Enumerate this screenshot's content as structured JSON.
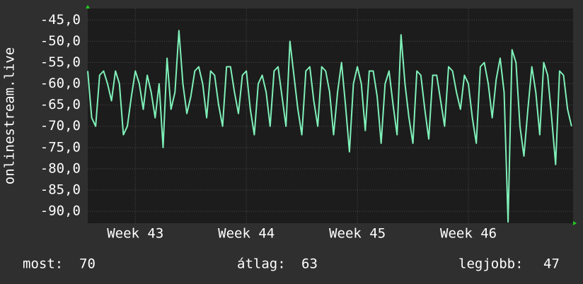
{
  "chart_data": {
    "type": "line",
    "y_label": "onlinestream.live",
    "x": [
      0,
      0.25,
      0.5,
      0.75,
      1,
      1.25,
      1.5,
      1.75,
      2,
      2.25,
      2.5,
      2.75,
      3,
      3.25,
      3.5,
      3.75,
      4,
      4.25,
      4.5,
      4.75,
      5,
      5.25,
      5.5,
      5.75,
      6,
      6.25,
      6.5,
      6.75,
      7,
      7.25,
      7.5,
      7.75,
      8,
      8.25,
      8.5,
      8.75,
      9,
      9.25,
      9.5,
      9.75,
      10,
      10.25,
      10.5,
      10.75,
      11,
      11.25,
      11.5,
      11.75,
      12,
      12.25,
      12.5,
      12.75,
      13,
      13.25,
      13.5,
      13.75,
      14,
      14.25,
      14.5,
      14.75,
      15,
      15.25,
      15.5,
      15.75,
      16,
      16.25,
      16.5,
      16.75,
      17,
      17.25,
      17.5,
      17.75,
      18,
      18.25,
      18.5,
      18.75,
      19,
      19.25,
      19.5,
      19.75,
      20,
      20.25,
      20.5,
      20.75,
      21,
      21.25,
      21.5,
      21.75,
      22,
      22.25,
      22.5,
      22.75,
      23,
      23.25,
      23.5,
      23.75,
      24,
      24.25,
      24.5,
      24.75,
      25,
      25.25,
      25.5,
      25.75,
      26,
      26.25,
      26.5,
      26.75,
      27,
      27.25,
      27.5,
      27.75,
      28,
      28.25,
      28.5,
      28.75,
      29,
      29.25,
      29.5,
      29.75,
      30,
      30.25,
      30.5
    ],
    "series": [
      {
        "name": "onlinestream.live",
        "color": "#7ff0b8",
        "values": [
          -57,
          -68,
          -70,
          -58,
          -57,
          -60,
          -64,
          -57,
          -60,
          -72,
          -70,
          -63,
          -57,
          -60,
          -66,
          -58,
          -62,
          -68,
          -60,
          -75,
          -54,
          -66,
          -62,
          -47.5,
          -60,
          -67,
          -63,
          -57,
          -56,
          -60,
          -68,
          -57,
          -58,
          -65,
          -70,
          -56,
          -56,
          -62,
          -67,
          -58,
          -57,
          -66,
          -72,
          -60,
          -58,
          -62,
          -70,
          -57,
          -56,
          -63,
          -70,
          -50,
          -58,
          -66,
          -72,
          -57,
          -56,
          -64,
          -70,
          -56,
          -57,
          -62,
          -72,
          -62,
          -55,
          -65,
          -76,
          -60,
          -56,
          -60,
          -71,
          -57,
          -57,
          -63,
          -74,
          -60,
          -57,
          -65,
          -72,
          -48.5,
          -60,
          -68,
          -74,
          -57,
          -58,
          -66,
          -73,
          -58,
          -58,
          -64,
          -70,
          -56,
          -57,
          -62,
          -66,
          -58,
          -60,
          -68,
          -74,
          -56,
          -55,
          -60,
          -68,
          -59,
          -54,
          -62,
          -92.5,
          -52,
          -55,
          -70,
          -77,
          -66,
          -56,
          -62,
          -72,
          -55,
          -58,
          -68,
          -79,
          -57,
          -58,
          -66,
          -70
        ]
      }
    ],
    "xlim": [
      0,
      30.6
    ],
    "xticks": [
      {
        "value": 3,
        "label": "Week 43"
      },
      {
        "value": 10,
        "label": "Week 44"
      },
      {
        "value": 17,
        "label": "Week 45"
      },
      {
        "value": 24,
        "label": "Week 46"
      }
    ],
    "ylim": [
      -92.8,
      -42.3
    ],
    "yticks": [
      {
        "value": -45,
        "label": "-45,0"
      },
      {
        "value": -50,
        "label": "-50,0"
      },
      {
        "value": -55,
        "label": "-55,0"
      },
      {
        "value": -60,
        "label": "-60,0"
      },
      {
        "value": -65,
        "label": "-65,0"
      },
      {
        "value": -70,
        "label": "-70,0"
      },
      {
        "value": -75,
        "label": "-75,0"
      },
      {
        "value": -80,
        "label": "-80,0"
      },
      {
        "value": -85,
        "label": "-85,0"
      },
      {
        "value": -90,
        "label": "-90,0"
      }
    ],
    "grid": true,
    "stats": [
      {
        "label": "most:",
        "value": 70
      },
      {
        "label": "átlag:",
        "value": 63
      },
      {
        "label": "legjobb:",
        "value": 47
      }
    ]
  }
}
